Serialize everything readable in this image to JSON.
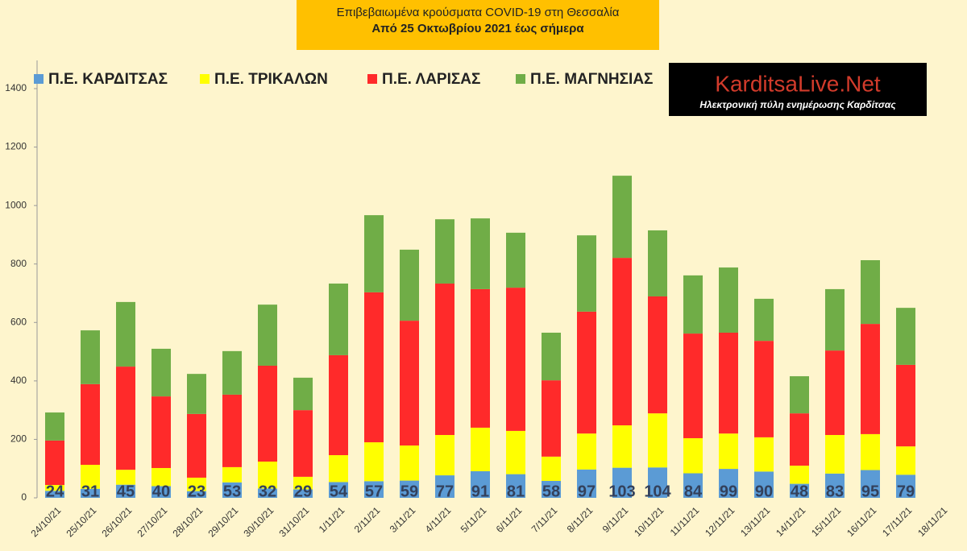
{
  "chart_data": {
    "type": "stacked-bar",
    "title": "Επιβεβαιωμένα κρούσματα COVID-19 στη Θεσσαλία",
    "subtitle": "Από 25 Οκτωβρίου 2021 έως σήμερα",
    "logo": {
      "title": "KarditsaLive.Net",
      "tagline": "Ηλεκτρονική πύλη ενημέρωσης Καρδίτσας"
    },
    "categories": [
      "24/10/21",
      "25/10/21",
      "26/10/21",
      "27/10/21",
      "28/10/21",
      "29/10/21",
      "30/10/21",
      "31/10/21",
      "1/11/21",
      "2/11/21",
      "3/11/21",
      "4/11/21",
      "5/11/21",
      "6/11/21",
      "7/11/21",
      "8/11/21",
      "9/11/21",
      "10/11/21",
      "11/11/21",
      "12/11/21",
      "13/11/21",
      "14/11/21",
      "15/11/21",
      "16/11/21",
      "17/11/21",
      "18/11/21"
    ],
    "series": [
      {
        "name": "Π.Ε. ΚΑΡΔΙΤΣΑΣ",
        "color": "#5b9bd5",
        "values": [
          24,
          31,
          45,
          40,
          23,
          53,
          32,
          29,
          54,
          57,
          59,
          77,
          91,
          81,
          58,
          97,
          103,
          104,
          84,
          99,
          90,
          48,
          83,
          95,
          79,
          null
        ],
        "data_labels": true
      },
      {
        "name": "Π.Ε. ΤΡΙΚΑΛΩΝ",
        "color": "#ffff00",
        "values": [
          20,
          82,
          51,
          62,
          46,
          52,
          92,
          43,
          92,
          133,
          120,
          138,
          149,
          148,
          83,
          123,
          145,
          185,
          120,
          121,
          117,
          62,
          132,
          123,
          97,
          null
        ]
      },
      {
        "name": "Π.Ε. ΛΑΡΙΣΑΣ",
        "color": "#ff2a2a",
        "values": [
          152,
          276,
          353,
          245,
          218,
          248,
          328,
          228,
          342,
          513,
          427,
          518,
          474,
          490,
          261,
          417,
          573,
          400,
          358,
          345,
          330,
          179,
          289,
          377,
          279,
          null
        ]
      },
      {
        "name": "Π.Ε. ΜΑΓΝΗΣΙΑΣ",
        "color": "#70ad47",
        "values": [
          96,
          184,
          221,
          163,
          137,
          149,
          209,
          111,
          245,
          264,
          243,
          220,
          242,
          188,
          163,
          261,
          281,
          226,
          199,
          223,
          144,
          127,
          210,
          218,
          195,
          null
        ]
      }
    ],
    "ylim": [
      0,
      1400
    ],
    "yticks": [
      0,
      200,
      400,
      600,
      800,
      1000,
      1200,
      1400
    ],
    "grid": false
  }
}
